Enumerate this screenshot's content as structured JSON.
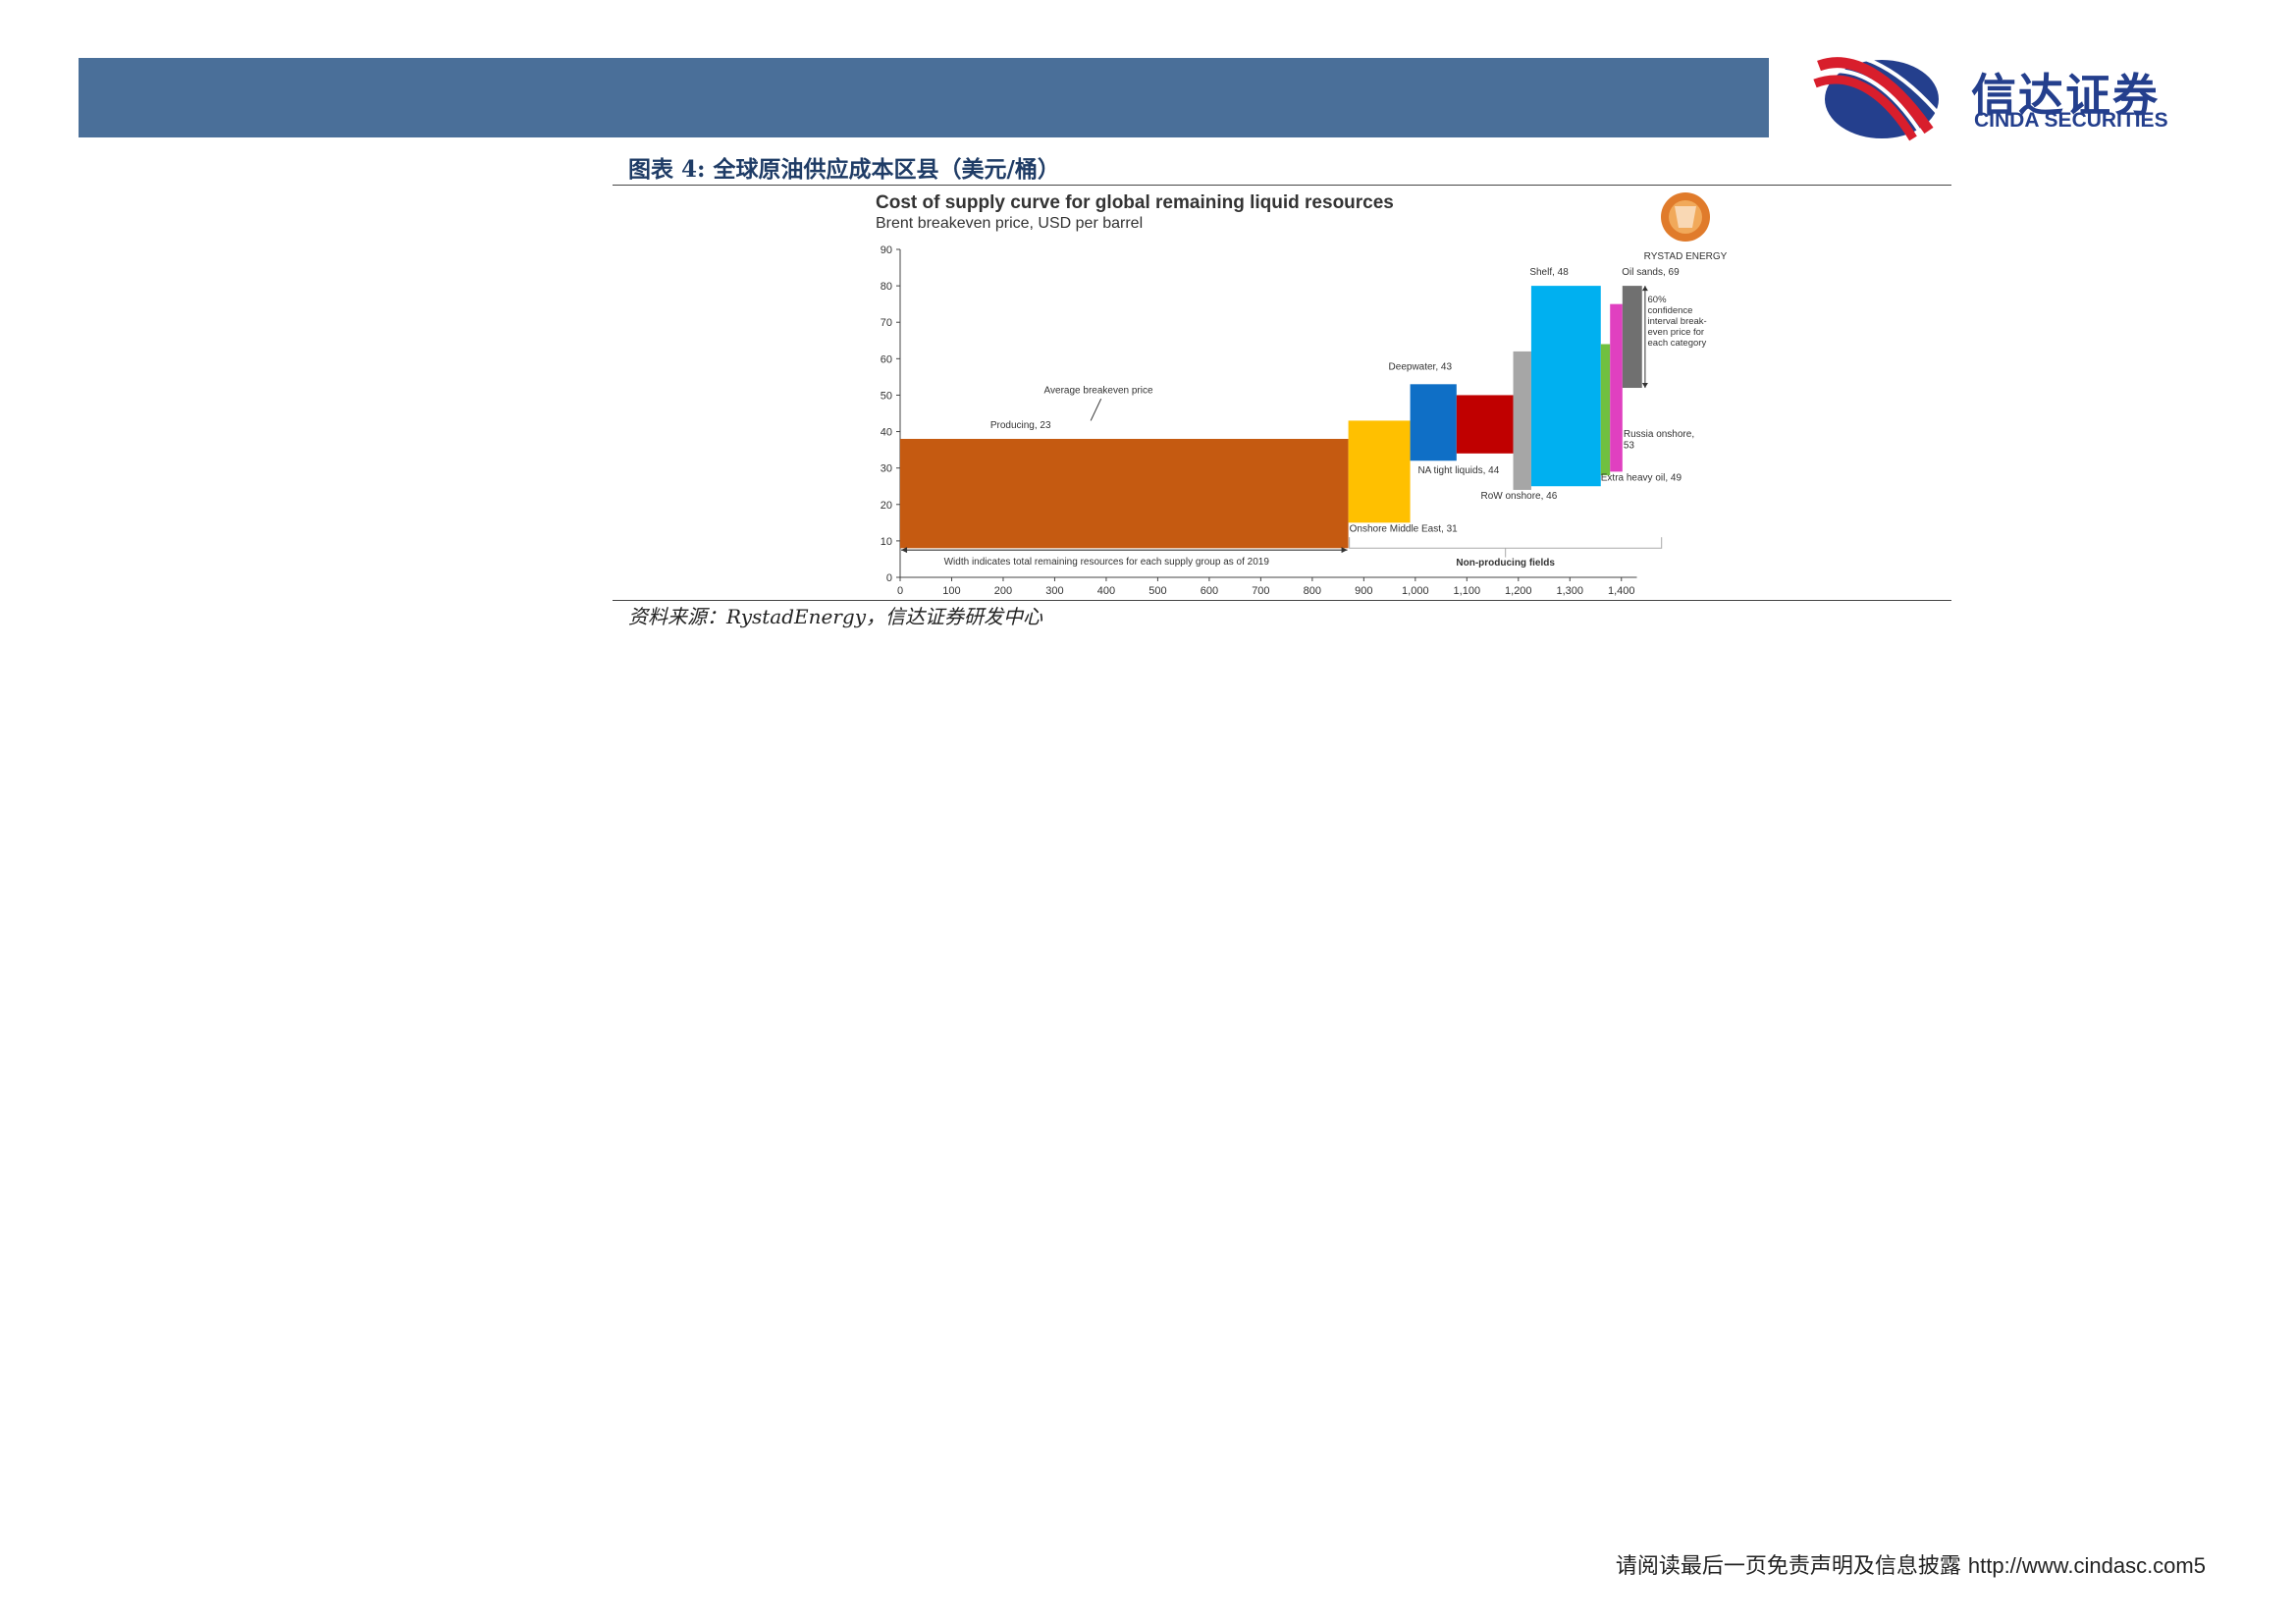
{
  "header": {
    "brand_cn": "信达证券",
    "brand_en": "CINDA SECURITIES",
    "bar_color": "#4a6f99"
  },
  "figure": {
    "title": "图表 4:  全球原油供应成本区县（美元/桶）",
    "source": "资料来源：RystadEnergy，信达证券研发中心"
  },
  "chart_data": {
    "type": "bar",
    "title": "Cost of supply curve for global remaining liquid resources",
    "subtitle": "Brent breakeven price, USD per barrel",
    "logo_text": "RYSTAD ENERGY",
    "xlim": [
      0,
      1450
    ],
    "ylim": [
      0,
      90
    ],
    "x_ticks": [
      "0",
      "100",
      "200",
      "300",
      "400",
      "500",
      "600",
      "700",
      "800",
      "900",
      "1,000",
      "1,100",
      "1,200",
      "1,300",
      "1,400"
    ],
    "y_ticks": [
      "0",
      "10",
      "20",
      "30",
      "40",
      "50",
      "60",
      "70",
      "80",
      "90"
    ],
    "note_width": "Width indicates total remaining resources for each supply group as of 2019",
    "note_nonproducing": "Non-producing fields",
    "note_avg": "Average breakeven price",
    "note_conf": [
      "60%",
      "confidence",
      "interval break-",
      "even price for",
      "each category"
    ],
    "boxes": [
      {
        "label": "Producing, 23",
        "x0": 0,
        "x1": 870,
        "low": 8,
        "high": 38,
        "color": "#c55a11"
      },
      {
        "label": "Onshore Middle East, 31",
        "x0": 870,
        "x1": 990,
        "low": 15,
        "high": 43,
        "color": "#ffc000"
      },
      {
        "label": "Deepwater, 43",
        "x0": 990,
        "x1": 1080,
        "low": 32,
        "high": 53,
        "color": "#0f6fc6"
      },
      {
        "label": "NA tight liquids, 44",
        "x0": 1080,
        "x1": 1190,
        "low": 34,
        "high": 50,
        "color": "#c00000"
      },
      {
        "label": "RoW onshore, 46",
        "x0": 1190,
        "x1": 1225,
        "low": 24,
        "high": 62,
        "color": "#a6a6a6"
      },
      {
        "label": "Shelf, 48",
        "x0": 1225,
        "x1": 1360,
        "low": 25,
        "high": 80,
        "color": "#00b0f0"
      },
      {
        "label": "Russia onshore, 53",
        "x0": 1360,
        "x1": 1378,
        "low": 28,
        "high": 64,
        "color": "#70c040"
      },
      {
        "label": "Extra heavy oil, 49",
        "x0": 1378,
        "x1": 1402,
        "low": 29,
        "high": 75,
        "color": "#e040c0"
      },
      {
        "label": "Oil sands, 69",
        "x0": 1402,
        "x1": 1440,
        "low": 52,
        "high": 80,
        "color": "#707070"
      }
    ]
  },
  "footer": {
    "disclaimer": "请阅读最后一页免责声明及信息披露",
    "url": "http://www.cindasc.com",
    "page": "5"
  }
}
